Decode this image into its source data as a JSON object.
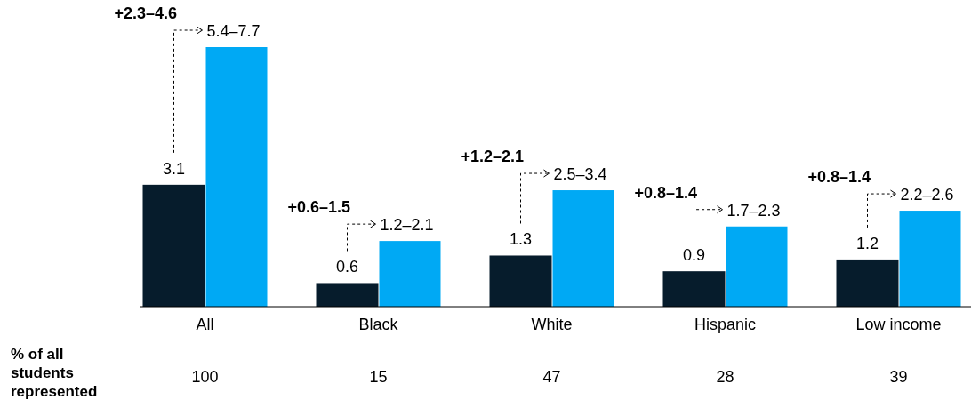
{
  "chart_data": {
    "type": "bar",
    "categories": [
      "All",
      "Black",
      "White",
      "Hispanic",
      "Low income"
    ],
    "series": [
      {
        "color": "#061c2c",
        "values": [
          3.1,
          0.6,
          1.3,
          0.9,
          1.2
        ],
        "value_labels": [
          "3.1",
          "0.6",
          "1.3",
          "0.9",
          "1.2"
        ]
      },
      {
        "color": "#00a9f4",
        "values": [
          6.6,
          1.67,
          2.96,
          2.04,
          2.44
        ],
        "value_labels": [
          "5.4–7.7",
          "1.2–2.1",
          "2.5–3.4",
          "1.7–2.3",
          "2.2–2.6"
        ]
      }
    ],
    "annotations": [
      "+2.3–4.6",
      "+0.6–1.5",
      "+1.2–2.1",
      "+0.8–1.4",
      "+0.8–1.4",
      "% of all students represented",
      "100",
      "15",
      "47",
      "28",
      "39"
    ]
  }
}
